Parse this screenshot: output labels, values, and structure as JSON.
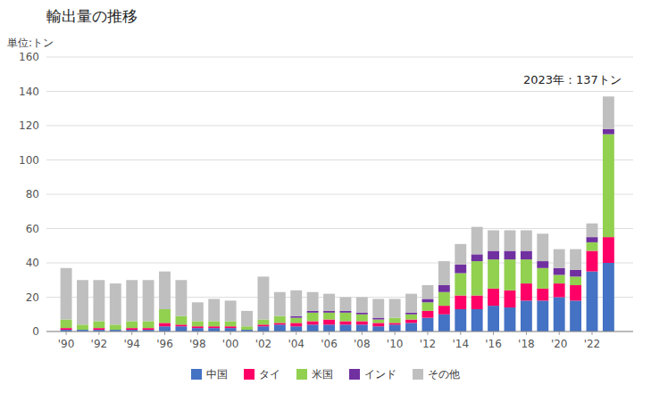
{
  "chart_data": {
    "type": "bar",
    "stacked": true,
    "title": "輸出量の推移",
    "ylabel": "単位:トン",
    "annotation": "2023年：137トン",
    "x": [
      1990,
      1991,
      1992,
      1993,
      1994,
      1995,
      1996,
      1997,
      1998,
      1999,
      2000,
      2001,
      2002,
      2003,
      2004,
      2005,
      2006,
      2007,
      2008,
      2009,
      2010,
      2011,
      2012,
      2013,
      2014,
      2015,
      2016,
      2017,
      2018,
      2019,
      2020,
      2021,
      2022,
      2023
    ],
    "xlim": [
      1988.8,
      2024.5
    ],
    "xticks": [
      {
        "value": 1990,
        "label": "'90"
      },
      {
        "value": 1992,
        "label": "'92"
      },
      {
        "value": 1994,
        "label": "'94"
      },
      {
        "value": 1996,
        "label": "'96"
      },
      {
        "value": 1998,
        "label": "'98"
      },
      {
        "value": 2000,
        "label": "'00"
      },
      {
        "value": 2002,
        "label": "'02"
      },
      {
        "value": 2004,
        "label": "'04"
      },
      {
        "value": 2006,
        "label": "'06"
      },
      {
        "value": 2008,
        "label": "'08"
      },
      {
        "value": 2010,
        "label": "'10"
      },
      {
        "value": 2012,
        "label": "'12"
      },
      {
        "value": 2014,
        "label": "'14"
      },
      {
        "value": 2016,
        "label": "'16"
      },
      {
        "value": 2018,
        "label": "'18"
      },
      {
        "value": 2020,
        "label": "'20"
      },
      {
        "value": 2022,
        "label": "'22"
      }
    ],
    "ylim": [
      0,
      160
    ],
    "yticks": [
      0,
      20,
      40,
      60,
      80,
      100,
      120,
      140,
      160
    ],
    "grid": true,
    "legend": "bottom",
    "series": [
      {
        "name": "中国",
        "color": "#4472c4",
        "values": [
          1,
          1,
          1,
          1,
          1,
          1,
          3,
          3,
          2,
          2,
          2,
          1,
          3,
          4,
          3,
          4,
          4,
          4,
          4,
          3,
          4,
          5,
          8,
          10,
          13,
          13,
          15,
          14,
          18,
          18,
          20,
          18,
          35,
          40
        ]
      },
      {
        "name": "タイ",
        "color": "#ff0066",
        "values": [
          1,
          0,
          1,
          0,
          1,
          1,
          2,
          1,
          1,
          1,
          1,
          0,
          1,
          1,
          2,
          2,
          3,
          2,
          2,
          2,
          1,
          2,
          4,
          5,
          8,
          8,
          10,
          10,
          10,
          7,
          8,
          9,
          12,
          15
        ]
      },
      {
        "name": "米国",
        "color": "#92d050",
        "values": [
          5,
          3,
          4,
          3,
          4,
          4,
          8,
          5,
          3,
          3,
          3,
          2,
          3,
          4,
          3,
          5,
          4,
          5,
          4,
          2,
          3,
          3,
          5,
          8,
          13,
          20,
          17,
          18,
          14,
          12,
          5,
          5,
          5,
          60
        ]
      },
      {
        "name": "インド",
        "color": "#7030a0",
        "values": [
          0,
          0,
          0,
          0,
          0,
          0,
          0,
          0,
          0,
          0,
          0,
          0,
          0,
          0,
          1,
          1,
          1,
          1,
          1,
          1,
          0,
          1,
          2,
          4,
          5,
          4,
          5,
          5,
          5,
          4,
          4,
          4,
          3,
          3
        ]
      },
      {
        "name": "その他",
        "color": "#bfbfbf",
        "values": [
          30,
          26,
          24,
          24,
          24,
          24,
          22,
          21,
          11,
          13,
          12,
          9,
          25,
          14,
          15,
          11,
          10,
          8,
          9,
          11,
          11,
          11,
          8,
          14,
          12,
          16,
          12,
          12,
          12,
          16,
          11,
          12,
          8,
          19
        ]
      }
    ]
  }
}
